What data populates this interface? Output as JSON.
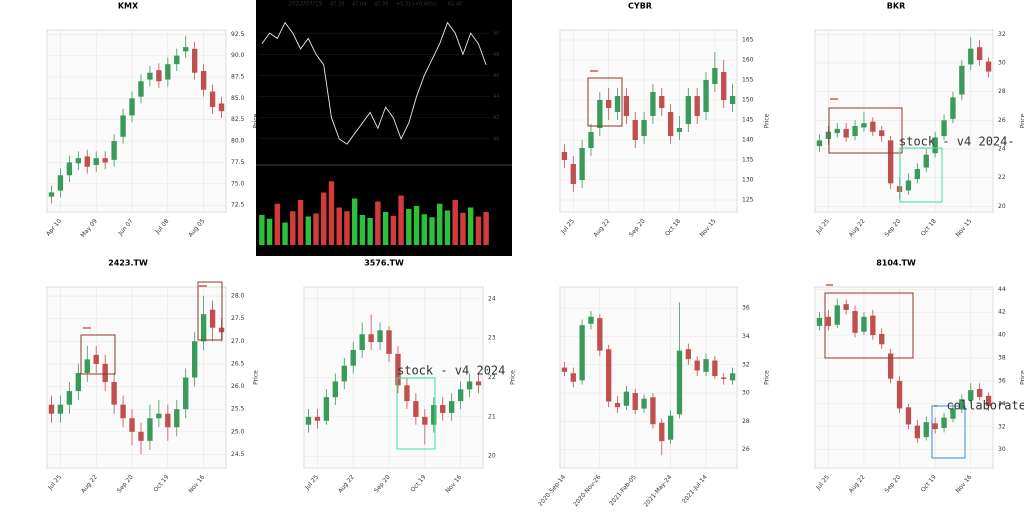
{
  "chart_data": [
    {
      "type": "candlestick",
      "title": "KMX",
      "ylabel": "Price",
      "up_color": "#3a9a5b",
      "down_color": "#c0504d",
      "grid": true,
      "categories": [
        null,
        "Apr 10",
        null,
        null,
        null,
        "May 09",
        null,
        null,
        null,
        "Jun 07",
        null,
        null,
        null,
        "Jul 08",
        null,
        null,
        null,
        "Aug 05",
        null,
        null
      ],
      "open": [
        73.5,
        74.2,
        76,
        77.4,
        78.2,
        77.2,
        78,
        77.8,
        80.5,
        83,
        85.2,
        87.2,
        88.3,
        87.2,
        89,
        90.5,
        90.8,
        88.2,
        85.8,
        84.4
      ],
      "high": [
        74.8,
        76.8,
        78.3,
        78.8,
        79.0,
        78.8,
        78.8,
        80.8,
        83.8,
        85.8,
        87.8,
        88.8,
        89.1,
        89.8,
        90.8,
        92.3,
        91.6,
        89.0,
        86.6,
        85.2
      ],
      "low": [
        72.7,
        73.4,
        75.2,
        76.6,
        76.2,
        76.4,
        76.7,
        77.0,
        79.7,
        82.2,
        84.4,
        86.4,
        86.2,
        86.4,
        88.2,
        89.7,
        87.2,
        85.2,
        83.2,
        82.7
      ],
      "close": [
        74,
        76,
        77.5,
        78,
        77,
        78,
        77.5,
        80,
        83,
        85,
        87,
        88,
        87,
        89,
        90,
        91,
        88,
        86,
        84,
        83.5
      ],
      "ylim": [
        71.7,
        93.0
      ],
      "yticks": [
        72.5,
        {
          "value": 75,
          "label": "75.0"
        },
        77.5,
        {
          "value": 80,
          "label": "80.0"
        },
        82.5,
        {
          "value": 85,
          "label": "85.0"
        },
        87.5,
        {
          "value": 90,
          "label": "90.0"
        },
        92.5
      ],
      "annotations": []
    },
    {
      "type": "line",
      "title": "2022/07/15",
      "header_texts": [
        "47.39",
        "47.09",
        "47.39",
        "+0.31 (+0.66%)",
        "62.4K"
      ],
      "color": "#e8e8e8",
      "up_color": "#2fbf3f",
      "down_color": "#d23b3b",
      "values": [
        49,
        50,
        49.5,
        51,
        50,
        48.5,
        49.5,
        48,
        47,
        42,
        40,
        39.5,
        40.5,
        41.5,
        42.5,
        41,
        43,
        42,
        40,
        41.5,
        44,
        46,
        47.5,
        49,
        51,
        50,
        48,
        50,
        49,
        47
      ],
      "volume": [
        40,
        35,
        55,
        30,
        45,
        60,
        38,
        42,
        70,
        85,
        50,
        45,
        62,
        40,
        36,
        58,
        44,
        39,
        66,
        48,
        52,
        41,
        37,
        55,
        46,
        60,
        43,
        50,
        38,
        44
      ],
      "ylim": [
        38,
        52
      ],
      "yticks": [
        40,
        42,
        44,
        46,
        48,
        50
      ],
      "volume_ylim": [
        0,
        100
      ]
    },
    {
      "type": "candlestick",
      "title": "CYBR",
      "ylabel": "Price",
      "up_color": "#3a9a5b",
      "down_color": "#c0504d",
      "grid": true,
      "categories": [
        null,
        "Jul 25",
        null,
        null,
        null,
        "Aug 22",
        null,
        null,
        null,
        "Sep 20",
        null,
        null,
        null,
        "Oct 18",
        null,
        null,
        null,
        "Nov 15",
        null,
        null
      ],
      "open": [
        137,
        134,
        130,
        138,
        143,
        150,
        147,
        151,
        145,
        141,
        146,
        151,
        147,
        142,
        144,
        151,
        147,
        154,
        157,
        149
      ],
      "high": [
        139,
        136,
        140,
        144,
        152,
        153,
        153,
        153,
        147,
        147,
        154,
        153,
        149,
        146,
        153,
        153,
        157,
        162,
        160,
        154
      ],
      "low": [
        133,
        127,
        128,
        136,
        141,
        145,
        145,
        144,
        138,
        139,
        144,
        146,
        139,
        140,
        142,
        144,
        145,
        152,
        148,
        147
      ],
      "close": [
        135,
        129,
        138,
        142,
        150,
        148,
        151,
        146,
        140,
        145,
        152,
        148,
        141,
        143,
        151,
        146,
        155,
        158,
        150,
        151
      ],
      "ylim": [
        122,
        167.5
      ],
      "yticks": [
        125,
        130,
        135,
        140,
        145,
        150,
        155,
        160,
        165
      ],
      "annotations": []
    },
    {
      "type": "candlestick",
      "title": "BKR",
      "ylabel": "Price",
      "up_color": "#3a9a5b",
      "down_color": "#c0504d",
      "grid": true,
      "categories": [
        null,
        "Jul 25",
        null,
        null,
        null,
        "Aug 22",
        null,
        null,
        null,
        "Sep 20",
        null,
        null,
        null,
        "Oct 18",
        null,
        null,
        null,
        "Nov 15",
        null,
        null
      ],
      "open": [
        24.2,
        24.7,
        25.1,
        25.4,
        24.9,
        25.5,
        25.9,
        25.3,
        24.6,
        21.4,
        21.1,
        21.9,
        22.7,
        23.7,
        24.9,
        26.1,
        27.8,
        29.9,
        31.1,
        30.1
      ],
      "high": [
        25.0,
        25.6,
        25.8,
        25.8,
        26.0,
        26.6,
        26.2,
        25.6,
        24.9,
        22.0,
        22.3,
        23.0,
        24.0,
        25.2,
        26.4,
        28.0,
        30.2,
        31.8,
        31.6,
        30.4
      ],
      "low": [
        23.8,
        24.3,
        24.8,
        24.5,
        24.6,
        25.2,
        24.9,
        24.5,
        21.2,
        20.5,
        20.8,
        21.6,
        22.4,
        23.4,
        24.6,
        25.8,
        27.4,
        29.5,
        29.8,
        29.0
      ],
      "close": [
        24.6,
        25.2,
        25.4,
        24.8,
        25.6,
        25.8,
        25.2,
        24.9,
        21.6,
        21.0,
        21.8,
        22.6,
        23.6,
        24.8,
        26.0,
        27.6,
        29.8,
        31.0,
        30.2,
        29.4
      ],
      "ylim": [
        19.6,
        32.3
      ],
      "yticks": [
        20,
        22,
        24,
        26,
        28,
        30,
        32
      ],
      "annotations": [
        {
          "label": "stock - v4 2024-",
          "color": "#3ddc9a"
        }
      ]
    },
    {
      "type": "candlestick",
      "title": "2423.TW",
      "ylabel": "Price",
      "up_color": "#3a9a5b",
      "down_color": "#c0504d",
      "grid": true,
      "categories": [
        null,
        "Jul 25",
        null,
        null,
        null,
        "Aug 22",
        null,
        null,
        null,
        "Sep 20",
        null,
        null,
        null,
        "Oct 19",
        null,
        null,
        null,
        "Nov 16",
        null,
        null
      ],
      "open": [
        25.6,
        25.4,
        25.6,
        25.9,
        26.3,
        26.7,
        26.5,
        26.1,
        25.6,
        25.3,
        25.0,
        24.8,
        25.3,
        25.4,
        25.1,
        25.5,
        26.2,
        27.0,
        27.7,
        27.3
      ],
      "high": [
        25.8,
        25.8,
        26.1,
        26.5,
        26.9,
        26.9,
        26.7,
        26.3,
        25.8,
        25.5,
        25.2,
        25.6,
        25.7,
        25.6,
        25.7,
        26.4,
        27.2,
        28.0,
        27.9,
        27.5
      ],
      "low": [
        25.2,
        25.2,
        25.4,
        25.7,
        26.1,
        26.3,
        25.9,
        25.4,
        25.1,
        24.7,
        24.5,
        24.6,
        25.1,
        24.8,
        24.9,
        25.3,
        26.0,
        26.8,
        27.0,
        27.0
      ],
      "close": [
        25.4,
        25.6,
        25.9,
        26.3,
        26.6,
        26.5,
        26.1,
        25.6,
        25.3,
        25.0,
        24.8,
        25.3,
        25.4,
        25.1,
        25.5,
        26.2,
        27.0,
        27.6,
        27.3,
        27.2
      ],
      "ylim": [
        24.2,
        28.2
      ],
      "yticks": [
        24.5,
        {
          "value": 25,
          "label": "25.0"
        },
        25.5,
        {
          "value": 26,
          "label": "26.0"
        },
        26.5,
        {
          "value": 27,
          "label": "27.0"
        },
        27.5,
        {
          "value": 28,
          "label": "28.0"
        }
      ],
      "annotations": []
    },
    {
      "type": "candlestick",
      "title": "3576.TW",
      "ylabel": "Price",
      "up_color": "#3a9a5b",
      "down_color": "#c0504d",
      "grid": true,
      "categories": [
        null,
        "Jul 25",
        null,
        null,
        null,
        "Aug 22",
        null,
        null,
        null,
        "Sep 20",
        null,
        null,
        null,
        "Oct 19",
        null,
        null,
        null,
        "Nov 16",
        null,
        null
      ],
      "open": [
        20.8,
        21.0,
        20.9,
        21.5,
        21.9,
        22.3,
        22.7,
        23.1,
        22.9,
        23.2,
        22.6,
        21.8,
        21.4,
        21.0,
        20.8,
        21.3,
        21.1,
        21.4,
        21.7,
        21.9
      ],
      "high": [
        21.2,
        21.2,
        21.7,
        22.1,
        22.5,
        22.9,
        23.4,
        23.6,
        23.4,
        23.3,
        22.8,
        22.0,
        21.6,
        21.2,
        21.5,
        21.5,
        21.6,
        21.9,
        22.1,
        22.1
      ],
      "low": [
        20.6,
        20.7,
        20.8,
        21.3,
        21.7,
        22.1,
        22.5,
        22.7,
        22.7,
        22.4,
        21.6,
        21.2,
        20.8,
        20.3,
        20.6,
        20.9,
        20.9,
        21.2,
        21.5,
        21.6
      ],
      "close": [
        21.0,
        20.9,
        21.5,
        21.9,
        22.3,
        22.7,
        23.1,
        22.9,
        23.2,
        22.6,
        21.8,
        21.4,
        21.0,
        20.8,
        21.3,
        21.1,
        21.4,
        21.7,
        21.9,
        21.8
      ],
      "ylim": [
        19.7,
        24.3
      ],
      "yticks": [
        20,
        21,
        22,
        23,
        24
      ],
      "annotations": [
        {
          "label": "stock - v4 2024",
          "color": "#3ddc9a"
        }
      ]
    },
    {
      "type": "candlestick",
      "ylabel": "Price",
      "up_color": "#3a9a5b",
      "down_color": "#c0504d",
      "grid": true,
      "categories": [
        "2020-Sep-14",
        null,
        null,
        null,
        "2020-Nov-26",
        null,
        null,
        null,
        "2021-Feb-05",
        null,
        null,
        null,
        "2021-May-24",
        null,
        null,
        null,
        "2021-Jul-14",
        null,
        null,
        null
      ],
      "open": [
        31.8,
        31.4,
        30.9,
        34.9,
        35.3,
        33.1,
        29.3,
        29.1,
        30.0,
        28.9,
        29.7,
        27.9,
        26.7,
        28.5,
        33.1,
        32.3,
        31.5,
        32.3,
        31.1,
        30.9
      ],
      "high": [
        32.2,
        31.8,
        35.2,
        35.8,
        35.6,
        33.4,
        29.8,
        30.5,
        30.3,
        29.9,
        30.0,
        28.2,
        28.8,
        36.4,
        33.5,
        32.6,
        32.8,
        32.6,
        31.4,
        31.8
      ],
      "low": [
        31.2,
        30.4,
        30.6,
        34.5,
        32.6,
        29.0,
        28.6,
        28.8,
        28.5,
        28.6,
        27.5,
        25.6,
        26.4,
        28.2,
        32.0,
        31.2,
        31.2,
        31.0,
        30.6,
        30.6
      ],
      "close": [
        31.5,
        30.8,
        34.8,
        35.4,
        33.0,
        29.4,
        29.0,
        30.1,
        28.8,
        29.6,
        27.8,
        26.6,
        28.4,
        33.0,
        32.4,
        31.6,
        32.4,
        31.2,
        31.0,
        31.4
      ],
      "ylim": [
        24.7,
        37.5
      ],
      "yticks": [
        26,
        28,
        30,
        32,
        34,
        36
      ],
      "annotations": []
    },
    {
      "type": "candlestick",
      "title": "8104.TW",
      "ylabel": "Price",
      "up_color": "#3a9a5b",
      "down_color": "#c0504d",
      "grid": true,
      "categories": [
        null,
        "Jul 25",
        null,
        null,
        null,
        "Aug 22",
        null,
        null,
        null,
        "Sep 20",
        null,
        null,
        null,
        "Oct 19",
        null,
        null,
        null,
        "Nov 16",
        null,
        null
      ],
      "open": [
        40.8,
        41.6,
        40.9,
        42.7,
        42.1,
        40.3,
        41.7,
        40.1,
        38.4,
        36.0,
        33.7,
        32.1,
        31.1,
        32.3,
        31.9,
        32.7,
        33.5,
        34.3,
        35.3,
        34.7
      ],
      "high": [
        42.0,
        42.2,
        43.2,
        43.1,
        42.6,
        42.0,
        42.2,
        40.6,
        38.8,
        36.4,
        34.0,
        32.6,
        32.9,
        32.8,
        33.2,
        34.0,
        34.8,
        35.8,
        35.8,
        35.0
      ],
      "low": [
        40.4,
        40.4,
        40.6,
        41.8,
        39.8,
        40.0,
        39.6,
        38.8,
        35.8,
        33.2,
        31.8,
        30.6,
        30.8,
        31.4,
        31.5,
        32.4,
        33.2,
        34.0,
        34.3,
        33.4
      ],
      "close": [
        41.5,
        40.8,
        42.6,
        42.2,
        40.2,
        41.6,
        40.0,
        39.2,
        36.2,
        33.6,
        32.2,
        31.0,
        32.4,
        31.8,
        32.8,
        33.6,
        34.4,
        35.2,
        34.6,
        33.8
      ],
      "ylim": [
        28.4,
        44.2
      ],
      "yticks": [
        30,
        32,
        34,
        36,
        38,
        40,
        42,
        44
      ],
      "annotations": [
        {
          "label": "- collaborate",
          "color": "#3a8fd0"
        }
      ]
    }
  ]
}
